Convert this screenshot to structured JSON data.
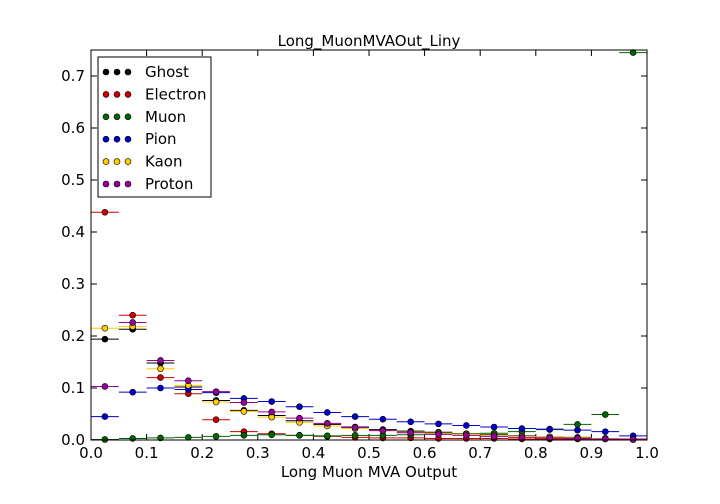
{
  "chart_data": {
    "type": "scatter",
    "title": "Long_MuonMVAOut_Liny",
    "xlabel": "Long Muon MVA Output",
    "ylabel": "",
    "xlim": [
      0.0,
      1.0
    ],
    "ylim": [
      0.0,
      0.75
    ],
    "xticks": [
      "0.0",
      "0.1",
      "0.2",
      "0.3",
      "0.4",
      "0.5",
      "0.6",
      "0.7",
      "0.8",
      "0.9",
      "1.0"
    ],
    "yticks": [
      "0.0",
      "0.1",
      "0.2",
      "0.3",
      "0.4",
      "0.5",
      "0.6",
      "0.7"
    ],
    "grid": false,
    "legend_position": "top-left",
    "bin_width": 0.05,
    "x": [
      0.025,
      0.075,
      0.125,
      0.175,
      0.225,
      0.275,
      0.325,
      0.375,
      0.425,
      0.475,
      0.525,
      0.575,
      0.625,
      0.675,
      0.725,
      0.775,
      0.825,
      0.875,
      0.925,
      0.975
    ],
    "series": [
      {
        "name": "Ghost",
        "color": "#000000",
        "values": [
          0.194,
          0.213,
          0.148,
          0.102,
          0.076,
          0.057,
          0.047,
          0.037,
          0.03,
          0.025,
          0.02,
          0.017,
          0.015,
          0.012,
          0.01,
          0.008,
          0.006,
          0.005,
          0.003,
          0.002
        ]
      },
      {
        "name": "Electron",
        "color": "#cc0000",
        "values": [
          0.438,
          0.24,
          0.12,
          0.089,
          0.039,
          0.016,
          0.012,
          0.009,
          0.007,
          0.005,
          0.004,
          0.004,
          0.003,
          0.003,
          0.003,
          0.002,
          0.002,
          0.002,
          0.002,
          0.002
        ]
      },
      {
        "name": "Muon",
        "color": "#006600",
        "values": [
          0.001,
          0.003,
          0.004,
          0.005,
          0.007,
          0.009,
          0.01,
          0.009,
          0.008,
          0.009,
          0.009,
          0.01,
          0.011,
          0.012,
          0.013,
          0.016,
          0.02,
          0.03,
          0.049,
          0.745
        ]
      },
      {
        "name": "Pion",
        "color": "#0000cc",
        "values": [
          0.045,
          0.092,
          0.1,
          0.097,
          0.091,
          0.08,
          0.074,
          0.064,
          0.053,
          0.045,
          0.04,
          0.035,
          0.031,
          0.028,
          0.025,
          0.022,
          0.021,
          0.019,
          0.016,
          0.008
        ]
      },
      {
        "name": "Kaon",
        "color": "#ffcc00",
        "values": [
          0.215,
          0.218,
          0.137,
          0.105,
          0.073,
          0.055,
          0.044,
          0.034,
          0.027,
          0.022,
          0.018,
          0.015,
          0.013,
          0.011,
          0.009,
          0.007,
          0.006,
          0.004,
          0.003,
          0.001
        ]
      },
      {
        "name": "Proton",
        "color": "#990099",
        "values": [
          0.103,
          0.226,
          0.153,
          0.114,
          0.093,
          0.072,
          0.054,
          0.042,
          0.032,
          0.024,
          0.018,
          0.014,
          0.011,
          0.009,
          0.007,
          0.005,
          0.004,
          0.003,
          0.002,
          0.001
        ]
      }
    ]
  }
}
